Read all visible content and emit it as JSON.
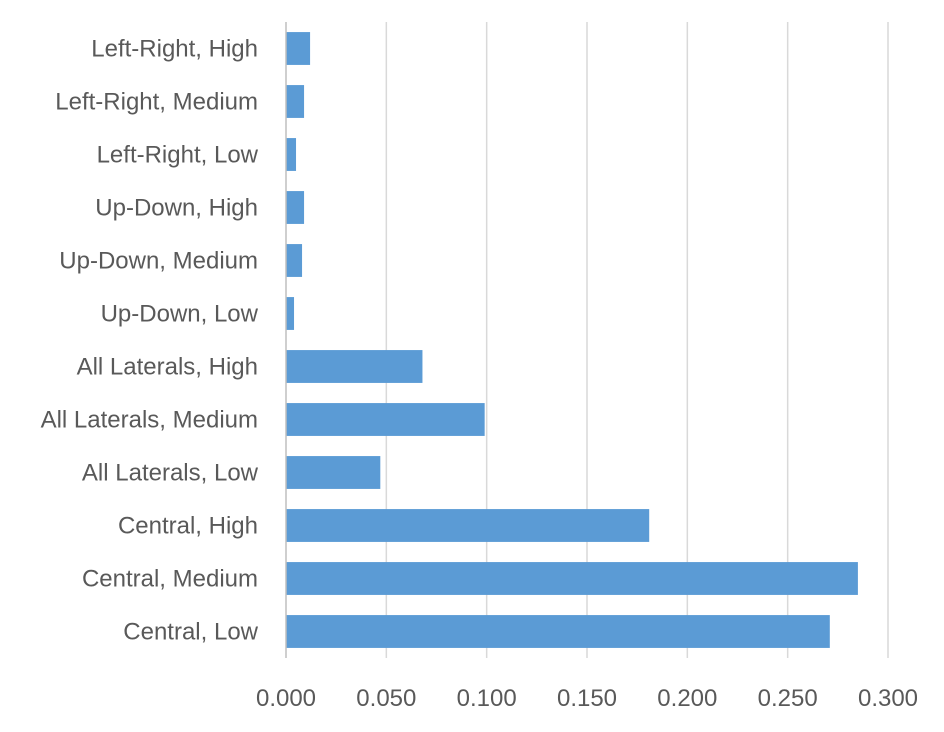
{
  "chart_data": {
    "type": "bar",
    "orientation": "horizontal",
    "title": "",
    "xlabel": "",
    "ylabel": "",
    "categories": [
      "Left-Right, High",
      "Left-Right, Medium",
      "Left-Right, Low",
      "Up-Down, High",
      "Up-Down, Medium",
      "Up-Down, Low",
      "All Laterals, High",
      "All Laterals, Medium",
      "All Laterals, Low",
      "Central, High",
      "Central, Medium",
      "Central, Low"
    ],
    "values": [
      0.012,
      0.009,
      0.005,
      0.009,
      0.008,
      0.004,
      0.068,
      0.099,
      0.047,
      0.181,
      0.285,
      0.271
    ],
    "xlim": [
      0,
      0.3
    ],
    "xticks": [
      "0.000",
      "0.050",
      "0.100",
      "0.150",
      "0.200",
      "0.250",
      "0.300"
    ],
    "grid": "vertical",
    "legend": "none",
    "colors": {
      "bar": "#5b9bd5",
      "grid": "#d9d9d9",
      "axis": "#bfbfbf",
      "text": "#595959"
    }
  }
}
